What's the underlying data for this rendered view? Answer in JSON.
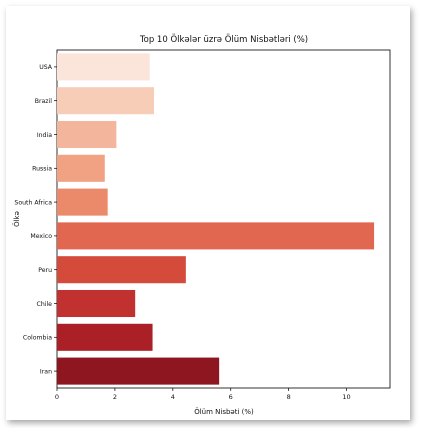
{
  "chart_data": {
    "type": "bar",
    "orientation": "horizontal",
    "title": "Top 10 Ölkələr üzrə Ölüm Nisbətləri (%)",
    "xlabel": "Ölüm Nisbəti (%)",
    "ylabel": "Ölkə",
    "categories": [
      "USA",
      "Brazil",
      "India",
      "Russia",
      "South Africa",
      "Mexico",
      "Peru",
      "Chile",
      "Colombia",
      "Iran"
    ],
    "values": [
      3.2,
      3.35,
      2.05,
      1.65,
      1.75,
      10.95,
      4.45,
      2.7,
      3.3,
      5.6
    ],
    "colors": [
      "#fbe4d9",
      "#f7cdb8",
      "#f3b69c",
      "#f0a283",
      "#ea8a6a",
      "#e16750",
      "#d44a3b",
      "#c1312f",
      "#aa2026",
      "#8e1620"
    ],
    "xticks": [
      0,
      2,
      4,
      6,
      8,
      10
    ],
    "xlim": [
      0,
      11.5
    ],
    "grid": false
  }
}
